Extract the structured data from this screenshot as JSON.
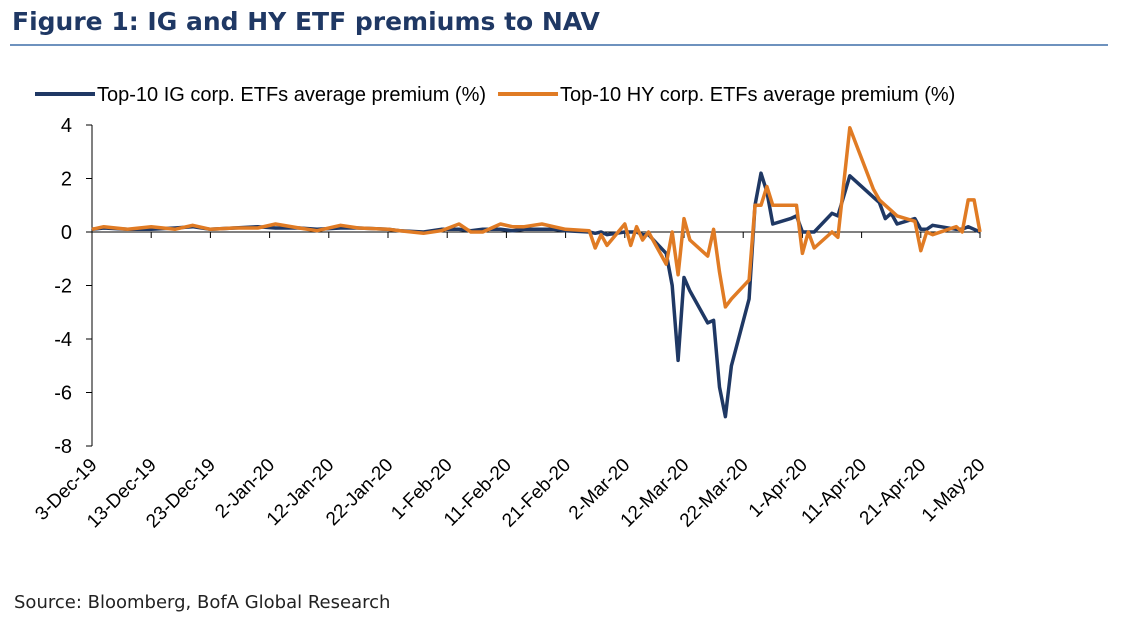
{
  "chart_data": {
    "type": "line",
    "title": "Figure 1: IG and HY ETF premiums to NAV",
    "source": "Source: Bloomberg, BofA Global Research",
    "x": [
      "2019-12-03",
      "2019-12-05",
      "2019-12-09",
      "2019-12-13",
      "2019-12-17",
      "2019-12-20",
      "2019-12-23",
      "2019-12-27",
      "2019-12-31",
      "2020-01-03",
      "2020-01-07",
      "2020-01-10",
      "2020-01-14",
      "2020-01-17",
      "2020-01-22",
      "2020-01-24",
      "2020-01-28",
      "2020-01-31",
      "2020-02-03",
      "2020-02-05",
      "2020-02-07",
      "2020-02-10",
      "2020-02-12",
      "2020-02-14",
      "2020-02-17",
      "2020-02-19",
      "2020-02-21",
      "2020-02-25",
      "2020-02-26",
      "2020-02-27",
      "2020-02-28",
      "2020-03-02",
      "2020-03-03",
      "2020-03-04",
      "2020-03-05",
      "2020-03-06",
      "2020-03-09",
      "2020-03-10",
      "2020-03-11",
      "2020-03-12",
      "2020-03-13",
      "2020-03-16",
      "2020-03-17",
      "2020-03-18",
      "2020-03-19",
      "2020-03-20",
      "2020-03-23",
      "2020-03-24",
      "2020-03-25",
      "2020-03-26",
      "2020-03-27",
      "2020-03-30",
      "2020-03-31",
      "2020-04-01",
      "2020-04-02",
      "2020-04-03",
      "2020-04-06",
      "2020-04-07",
      "2020-04-09",
      "2020-04-13",
      "2020-04-14",
      "2020-04-15",
      "2020-04-16",
      "2020-04-17",
      "2020-04-20",
      "2020-04-21",
      "2020-04-22",
      "2020-04-23",
      "2020-04-27",
      "2020-04-28",
      "2020-04-29",
      "2020-04-30",
      "2020-05-01"
    ],
    "series": [
      {
        "name": "Top-10 IG corp. ETFs average premium (%)",
        "color": "#1f3864",
        "values": [
          0.1,
          0.15,
          0.1,
          0.1,
          0.15,
          0.2,
          0.1,
          0.15,
          0.2,
          0.15,
          0.15,
          0.1,
          0.15,
          0.15,
          0.1,
          0.05,
          0.0,
          0.1,
          0.1,
          0.05,
          0.1,
          0.1,
          0.05,
          0.1,
          0.1,
          0.1,
          0.05,
          0.0,
          -0.05,
          0.0,
          -0.1,
          0.0,
          0.0,
          0.0,
          -0.1,
          -0.1,
          -0.8,
          -2.0,
          -4.8,
          -1.7,
          -2.2,
          -3.4,
          -3.3,
          -5.8,
          -6.9,
          -5.0,
          -2.5,
          1.0,
          2.2,
          1.5,
          0.3,
          0.5,
          0.6,
          0.0,
          0.0,
          0.0,
          0.7,
          0.6,
          2.1,
          1.3,
          1.1,
          0.5,
          0.7,
          0.3,
          0.5,
          0.1,
          0.1,
          0.25,
          0.1,
          0.1,
          0.2,
          0.1,
          0.0
        ]
      },
      {
        "name": "Top-10 HY corp. ETFs average premium (%)",
        "color": "#e07b24",
        "values": [
          0.1,
          0.2,
          0.1,
          0.2,
          0.1,
          0.25,
          0.1,
          0.15,
          0.15,
          0.3,
          0.15,
          0.05,
          0.25,
          0.15,
          0.1,
          0.05,
          -0.05,
          0.05,
          0.3,
          0.0,
          0.0,
          0.3,
          0.2,
          0.2,
          0.3,
          0.2,
          0.1,
          0.05,
          -0.6,
          -0.1,
          -0.5,
          0.3,
          -0.5,
          0.2,
          -0.3,
          0.0,
          -1.2,
          0.0,
          -1.6,
          0.5,
          -0.3,
          -0.9,
          0.1,
          -1.5,
          -2.8,
          -2.5,
          -1.8,
          1.0,
          1.0,
          1.7,
          1.0,
          1.0,
          1.0,
          -0.8,
          0.0,
          -0.6,
          0.0,
          -0.2,
          3.9,
          1.6,
          1.2,
          1.0,
          0.8,
          0.6,
          0.4,
          -0.7,
          0.0,
          -0.1,
          0.2,
          0.0,
          1.2,
          1.2,
          0.0
        ]
      }
    ],
    "xlim": [
      "2019-12-03",
      "2020-05-01"
    ],
    "xticks": [
      {
        "value": "2019-12-03",
        "label": "3-Dec-19"
      },
      {
        "value": "2019-12-13",
        "label": "13-Dec-19"
      },
      {
        "value": "2019-12-23",
        "label": "23-Dec-19"
      },
      {
        "value": "2020-01-02",
        "label": "2-Jan-20"
      },
      {
        "value": "2020-01-12",
        "label": "12-Jan-20"
      },
      {
        "value": "2020-01-22",
        "label": "22-Jan-20"
      },
      {
        "value": "2020-02-01",
        "label": "1-Feb-20"
      },
      {
        "value": "2020-02-11",
        "label": "11-Feb-20"
      },
      {
        "value": "2020-02-21",
        "label": "21-Feb-20"
      },
      {
        "value": "2020-03-02",
        "label": "2-Mar-20"
      },
      {
        "value": "2020-03-12",
        "label": "12-Mar-20"
      },
      {
        "value": "2020-03-22",
        "label": "22-Mar-20"
      },
      {
        "value": "2020-04-01",
        "label": "1-Apr-20"
      },
      {
        "value": "2020-04-11",
        "label": "11-Apr-20"
      },
      {
        "value": "2020-04-21",
        "label": "21-Apr-20"
      },
      {
        "value": "2020-05-01",
        "label": "1-May-20"
      }
    ],
    "ylim": [
      -8,
      4
    ],
    "yticks": [
      -8,
      -6,
      -4,
      -2,
      0,
      2,
      4
    ],
    "legend": "top",
    "grid": false
  }
}
